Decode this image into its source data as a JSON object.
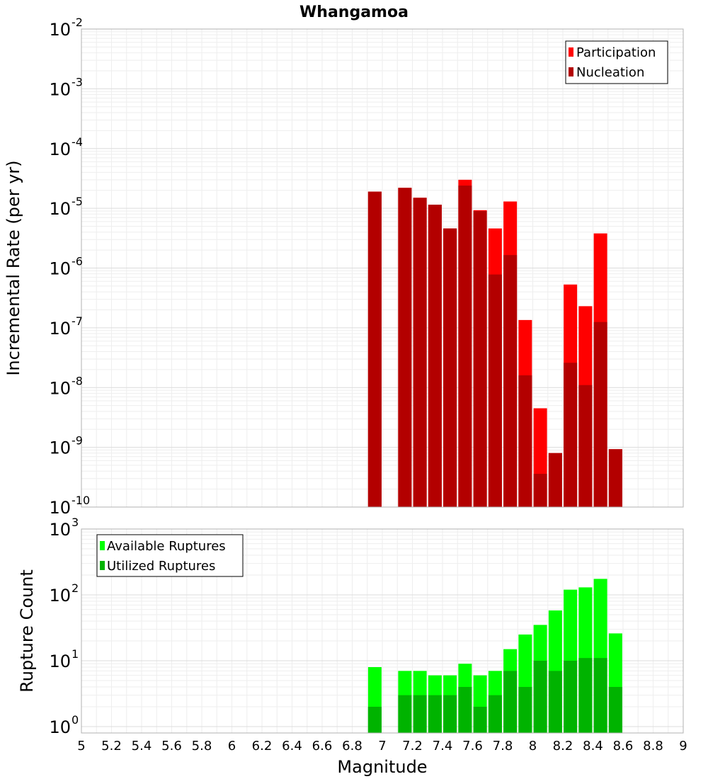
{
  "title": "Whangamoa",
  "x_label": "Magnitude",
  "chart_data": [
    {
      "type": "bar",
      "ylabel": "Incremental Rate (per yr)",
      "yscale": "log",
      "ylim": [
        1e-10,
        0.01
      ],
      "xlim": [
        5,
        9
      ],
      "grid": true,
      "legend_position": "top-right",
      "x": [
        6.95,
        7.15,
        7.25,
        7.35,
        7.45,
        7.55,
        7.65,
        7.75,
        7.85,
        7.95,
        8.05,
        8.15,
        8.25,
        8.35,
        8.45,
        8.55
      ],
      "series": [
        {
          "name": "Participation",
          "color": "#ff0000",
          "values": [
            1.9e-05,
            2.2e-05,
            1.5e-05,
            1.15e-05,
            4.6e-06,
            3e-05,
            9.3e-06,
            4.6e-06,
            1.3e-05,
            1.35e-07,
            4.5e-09,
            8e-10,
            5.3e-07,
            2.3e-07,
            3.8e-06,
            9.3e-10
          ]
        },
        {
          "name": "Nucleation",
          "color": "#b30000",
          "values": [
            1.9e-05,
            2.2e-05,
            1.5e-05,
            1.15e-05,
            4.6e-06,
            2.4e-05,
            9e-06,
            7.8e-07,
            1.65e-06,
            1.6e-08,
            3.6e-10,
            8e-10,
            2.6e-08,
            1.1e-08,
            1.25e-07,
            9.3e-10
          ]
        }
      ]
    },
    {
      "type": "bar",
      "ylabel": "Rupture Count",
      "yscale": "log",
      "ylim": [
        0.8,
        1000
      ],
      "xlim": [
        5,
        9
      ],
      "grid": true,
      "legend_position": "top-left",
      "x": [
        6.95,
        7.15,
        7.25,
        7.35,
        7.45,
        7.55,
        7.65,
        7.75,
        7.85,
        7.95,
        8.05,
        8.15,
        8.25,
        8.35,
        8.45,
        8.55
      ],
      "series": [
        {
          "name": "Available Ruptures",
          "color": "#00ff00",
          "values": [
            8,
            7,
            7,
            6,
            6,
            9,
            6,
            7,
            15,
            25,
            35,
            58,
            120,
            130,
            175,
            26
          ]
        },
        {
          "name": "Utilized Ruptures",
          "color": "#00b300",
          "values": [
            2,
            3,
            3,
            3,
            3,
            4,
            2,
            3,
            7,
            4,
            10,
            7,
            10,
            11,
            11,
            4
          ]
        }
      ]
    }
  ],
  "x_ticks": [
    "5",
    "5.2",
    "5.4",
    "5.6",
    "5.8",
    "6",
    "6.2",
    "6.4",
    "6.6",
    "6.8",
    "7",
    "7.2",
    "7.4",
    "7.6",
    "7.8",
    "8",
    "8.2",
    "8.4",
    "8.6",
    "8.8",
    "9"
  ]
}
